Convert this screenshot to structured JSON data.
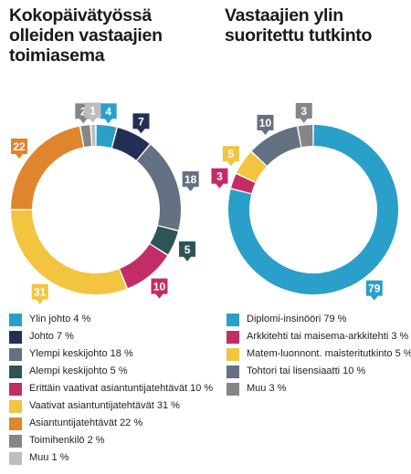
{
  "chart_data": [
    {
      "type": "pie",
      "title": "Kokopäivätyössä olleiden vastaajien toimiasema",
      "slices": [
        {
          "label": "Ylin johto 4 %",
          "value": 4,
          "color": "#2a9fc9"
        },
        {
          "label": "Johto 7 %",
          "value": 7,
          "color": "#232f55"
        },
        {
          "label": "Ylempi keskijohto 18 %",
          "value": 18,
          "color": "#647182"
        },
        {
          "label": "Alempi keskijohto 5 %",
          "value": 5,
          "color": "#2f5455"
        },
        {
          "label": "Erittäin vaativat asiantuntijatehtävät 10 %",
          "value": 10,
          "color": "#c22d67"
        },
        {
          "label": "Vaativat asiantuntijatehtävät 31 %",
          "value": 31,
          "color": "#f3c43f"
        },
        {
          "label": "Asiantuntijatehtävät 22 %",
          "value": 22,
          "color": "#e0852d"
        },
        {
          "label": "Toimihenkilö 2 %",
          "value": 2,
          "color": "#868686"
        },
        {
          "label": "Muu 1 %",
          "value": 1,
          "color": "#bdbdbd"
        }
      ],
      "data_labels": [
        "4",
        "7",
        "18",
        "5",
        "10",
        "31",
        "22",
        "2",
        "1"
      ],
      "legend": "bottom"
    },
    {
      "type": "pie",
      "title": "Vastaajien ylin suoritettu tutkinto",
      "slices": [
        {
          "label": "Diplomi-insinööri 79 %",
          "value": 79,
          "color": "#2a9fc9"
        },
        {
          "label": "Arkkitehti tai maisema-arkkitehti 3 %",
          "value": 3,
          "color": "#c22d67"
        },
        {
          "label": "Matem-luonnont. maisteritutkinto 5 %",
          "value": 5,
          "color": "#f3c43f"
        },
        {
          "label": "Tohtori tai lisensiaatti 10 %",
          "value": 10,
          "color": "#647182"
        },
        {
          "label": "Muu 3 %",
          "value": 3,
          "color": "#868686"
        }
      ],
      "data_labels": [
        "79",
        "3",
        "5",
        "10",
        "3"
      ],
      "legend": "bottom"
    }
  ]
}
